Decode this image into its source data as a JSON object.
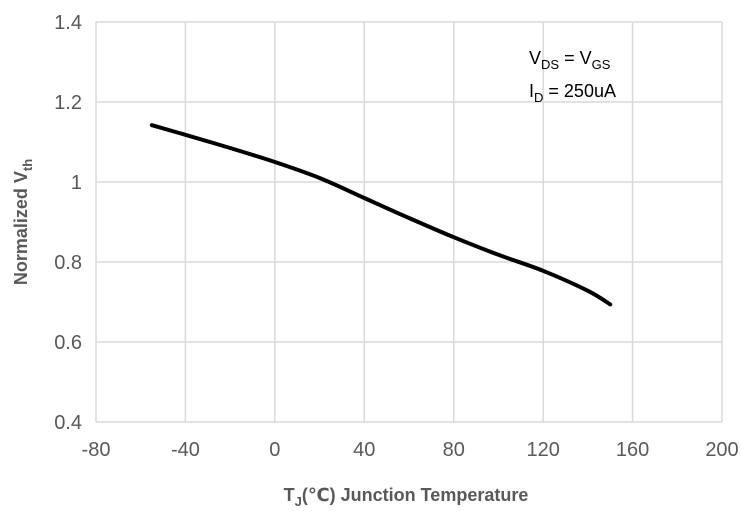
{
  "chart_data": {
    "type": "line",
    "title": "",
    "xlabel": {
      "main": "T",
      "sub": "J",
      "rest": "(℃) Junction Temperature"
    },
    "ylabel": {
      "main": "Normalized V",
      "sub": "th"
    },
    "xlim": [
      -80,
      200
    ],
    "ylim": [
      0.4,
      1.4
    ],
    "xticks": [
      -80,
      -40,
      0,
      40,
      80,
      120,
      160,
      200
    ],
    "yticks": [
      0.4,
      0.6,
      0.8,
      1.0,
      1.2,
      1.4
    ],
    "xtick_labels": [
      "-80",
      "-40",
      "0",
      "40",
      "80",
      "120",
      "160",
      "200"
    ],
    "ytick_labels": [
      "0.4",
      "0.6",
      "0.8",
      "1",
      "1.2",
      "1.4"
    ],
    "grid": true,
    "series": [
      {
        "name": "Normalized Vth",
        "color": "#000000",
        "x": [
          -55,
          -40,
          -20,
          0,
          20,
          40,
          60,
          80,
          100,
          120,
          140,
          150
        ],
        "y": [
          1.142,
          1.118,
          1.085,
          1.05,
          1.01,
          0.96,
          0.91,
          0.862,
          0.818,
          0.778,
          0.728,
          0.694
        ]
      }
    ],
    "annotations": [
      {
        "parts": [
          [
            "V",
            ""
          ],
          [
            "DS",
            "sub"
          ],
          [
            " = V",
            ""
          ],
          [
            "GS",
            "sub"
          ]
        ]
      },
      {
        "parts": [
          [
            "I",
            ""
          ],
          [
            "D",
            "sub"
          ],
          [
            " = 250uA",
            ""
          ]
        ]
      }
    ]
  },
  "colors": {
    "grid": "#d9d9d9",
    "line": "#000000",
    "text": "#595959"
  }
}
